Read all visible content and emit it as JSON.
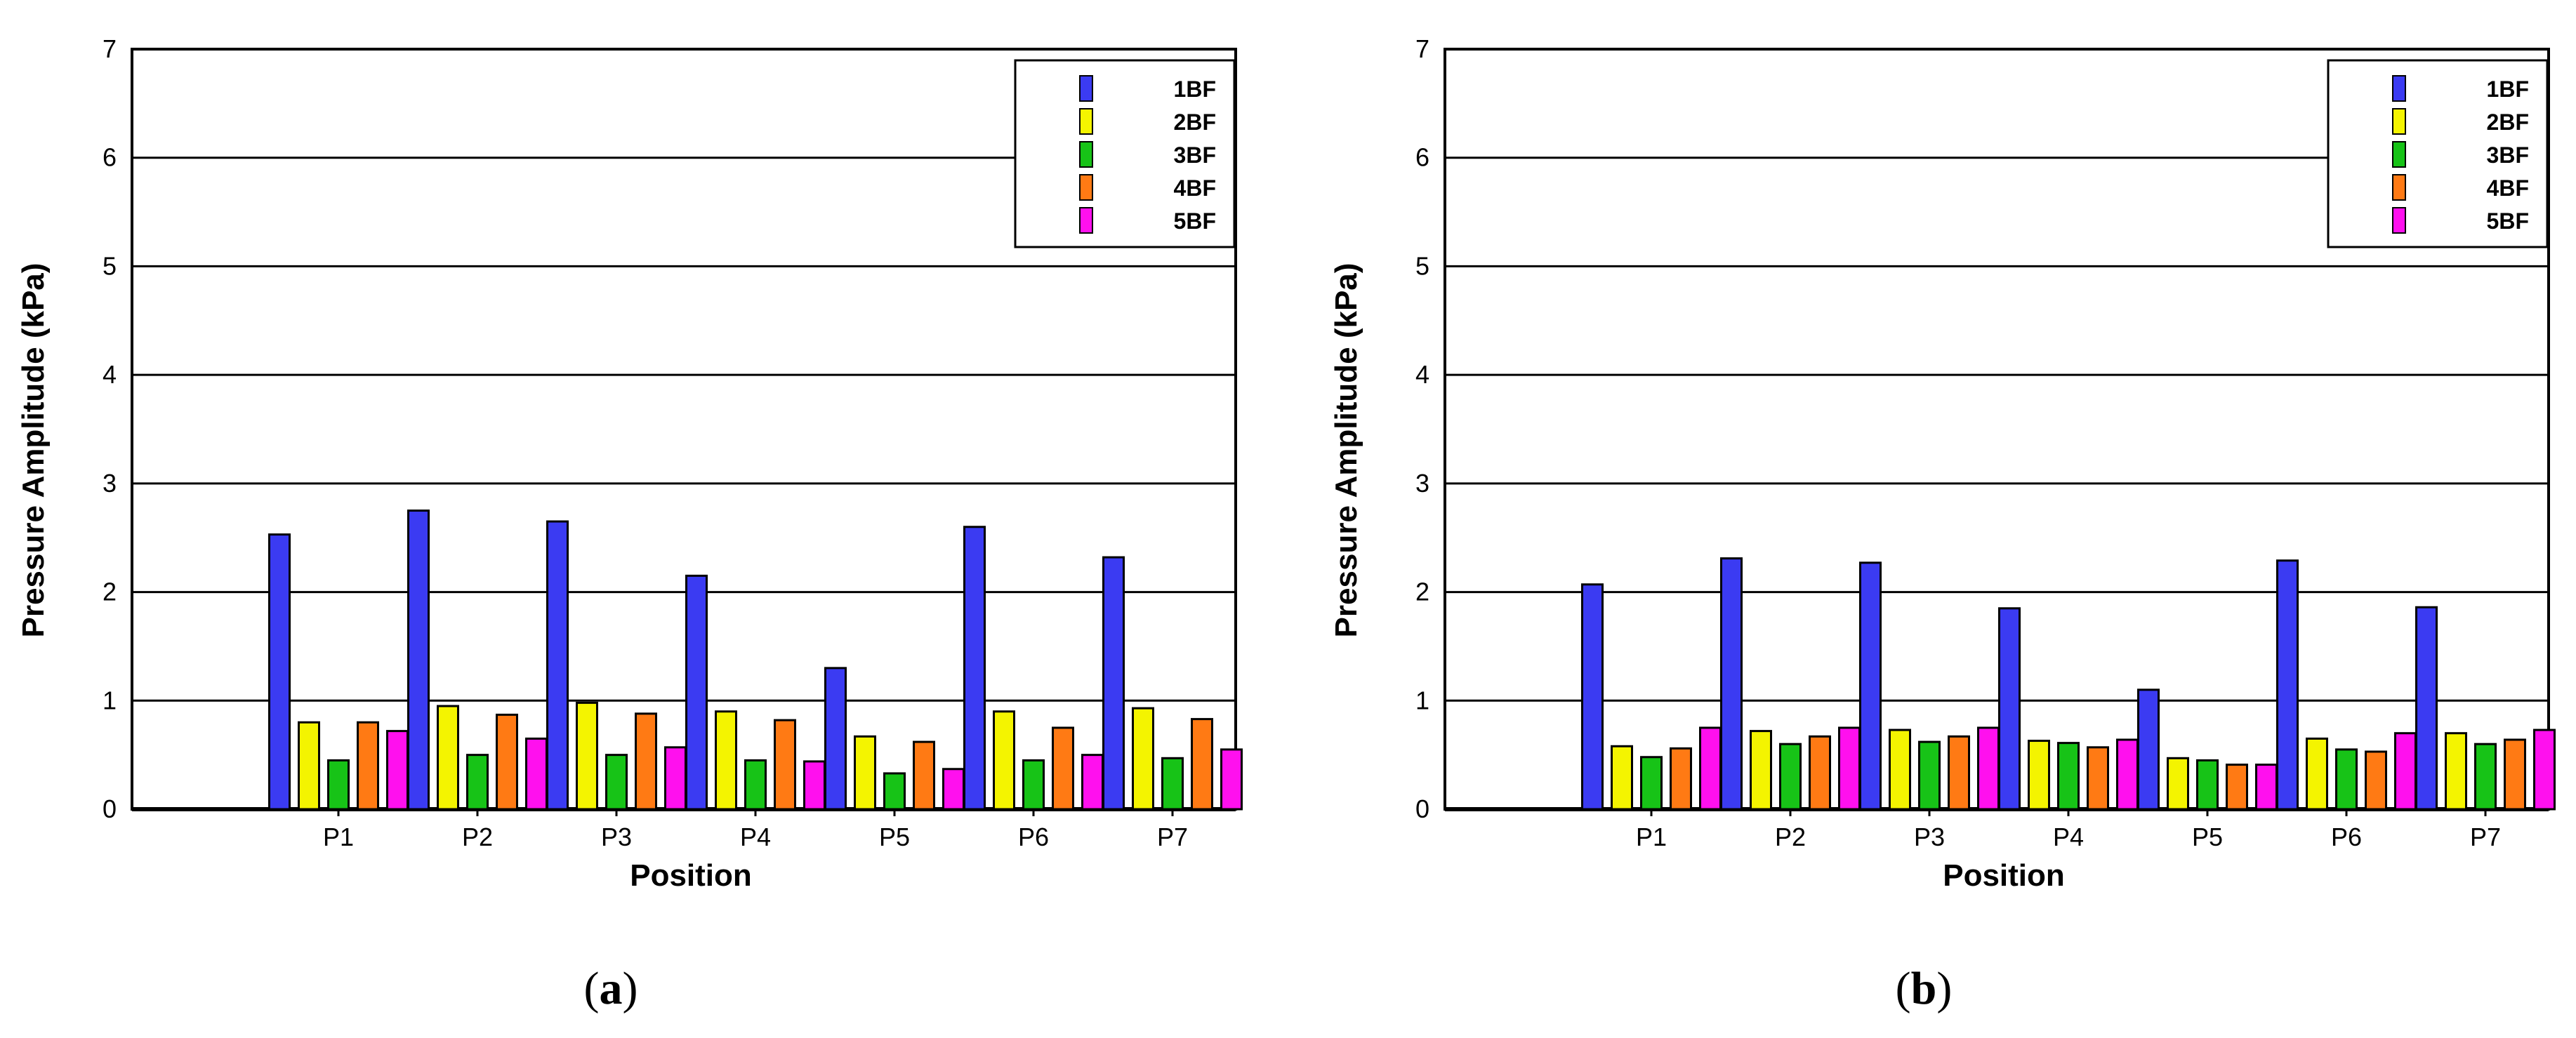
{
  "colors": {
    "1BF": "#3b3bf2",
    "2BF": "#f4f400",
    "3BF": "#17c317",
    "4BF": "#ff7a14",
    "5BF": "#ff10ee"
  },
  "chart_data": [
    {
      "panel": "(a)",
      "type": "bar",
      "title": "",
      "xlabel": "Position",
      "ylabel": "Pressure Amplitude (kPa)",
      "ylim": [
        0,
        7
      ],
      "yticks": [
        "0",
        "1",
        "2",
        "3",
        "4",
        "5",
        "6",
        "7"
      ],
      "grid": true,
      "legend_position": "top-right",
      "categories": [
        "P1",
        "P2",
        "P3",
        "P4",
        "P5",
        "P6",
        "P7"
      ],
      "series": [
        {
          "name": "1BF",
          "values": [
            2.53,
            2.75,
            2.65,
            2.15,
            1.3,
            2.6,
            2.32
          ]
        },
        {
          "name": "2BF",
          "values": [
            0.8,
            0.95,
            0.98,
            0.9,
            0.67,
            0.9,
            0.93
          ]
        },
        {
          "name": "3BF",
          "values": [
            0.45,
            0.5,
            0.5,
            0.45,
            0.33,
            0.45,
            0.47
          ]
        },
        {
          "name": "4BF",
          "values": [
            0.8,
            0.87,
            0.88,
            0.82,
            0.62,
            0.75,
            0.83
          ]
        },
        {
          "name": "5BF",
          "values": [
            0.72,
            0.65,
            0.57,
            0.44,
            0.37,
            0.5,
            0.55
          ]
        }
      ]
    },
    {
      "panel": "(b)",
      "type": "bar",
      "title": "",
      "xlabel": "Position",
      "ylabel": "Pressure Amplitude (kPa)",
      "ylim": [
        0,
        7
      ],
      "yticks": [
        "0",
        "1",
        "2",
        "3",
        "4",
        "5",
        "6",
        "7"
      ],
      "grid": true,
      "legend_position": "top-right",
      "categories": [
        "P1",
        "P2",
        "P3",
        "P4",
        "P5",
        "P6",
        "P7"
      ],
      "series": [
        {
          "name": "1BF",
          "values": [
            2.07,
            2.31,
            2.27,
            1.85,
            1.1,
            2.29,
            1.86
          ]
        },
        {
          "name": "2BF",
          "values": [
            0.58,
            0.72,
            0.73,
            0.63,
            0.47,
            0.65,
            0.7
          ]
        },
        {
          "name": "3BF",
          "values": [
            0.48,
            0.6,
            0.62,
            0.61,
            0.45,
            0.55,
            0.6
          ]
        },
        {
          "name": "4BF",
          "values": [
            0.56,
            0.67,
            0.67,
            0.57,
            0.41,
            0.53,
            0.64
          ]
        },
        {
          "name": "5BF",
          "values": [
            0.75,
            0.75,
            0.75,
            0.64,
            0.41,
            0.7,
            0.73
          ]
        }
      ]
    }
  ]
}
